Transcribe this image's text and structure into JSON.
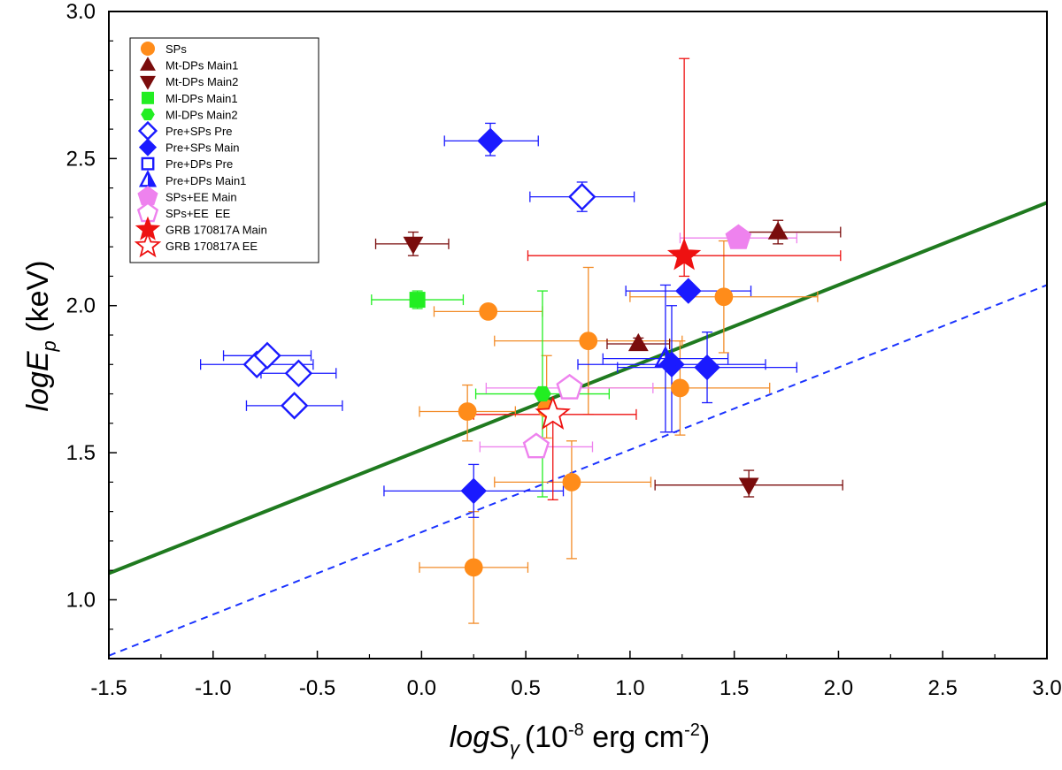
{
  "chart_data": {
    "type": "scatter",
    "title": "",
    "xlabel": {
      "main": "logS",
      "sub": "γ",
      "rest": "(10",
      "exp1": "-8",
      "unit": " erg cm",
      "exp2": "-2",
      "close": ")"
    },
    "ylabel": {
      "main": "logE",
      "sub": "p",
      "rest": " (keV)"
    },
    "xlim": [
      -1.5,
      3.0
    ],
    "ylim": [
      0.8,
      3.0
    ],
    "xticks": [
      -1.5,
      -1.0,
      -0.5,
      0.0,
      0.5,
      1.0,
      1.5,
      2.0,
      2.5,
      3.0
    ],
    "xtick_labels": [
      "-1.5",
      "-1.0",
      "-0.5",
      "0.0",
      "0.5",
      "1.0",
      "1.5",
      "2.0",
      "2.5",
      "3.0"
    ],
    "yticks": [
      1.0,
      1.5,
      2.0,
      2.5,
      3.0
    ],
    "ytick_labels": [
      "1.0",
      "1.5",
      "2.0",
      "2.5",
      "3.0"
    ],
    "legend_position": "top-left",
    "lines": [
      {
        "name": "fit",
        "style": "solid",
        "color": "#1f7a1f",
        "x": [
          -1.5,
          3.0
        ],
        "y": [
          1.09,
          2.35
        ]
      },
      {
        "name": "limit",
        "style": "dashed",
        "color": "#1a33ff",
        "x": [
          -1.5,
          3.0
        ],
        "y": [
          0.81,
          2.07
        ]
      }
    ],
    "series": [
      {
        "name": "SPs",
        "marker": "circle",
        "fill": "#ff8c1a",
        "stroke": "#ff8c1a",
        "err": "#f28c28",
        "points": [
          {
            "x": 0.32,
            "y": 1.98,
            "xerr": [
              0.26,
              0.26
            ],
            "yerr": [
              0,
              0
            ]
          },
          {
            "x": 0.8,
            "y": 1.88,
            "xerr": [
              0.45,
              0.45
            ],
            "yerr": [
              0.25,
              0.25
            ]
          },
          {
            "x": 1.45,
            "y": 2.03,
            "xerr": [
              0.45,
              0.45
            ],
            "yerr": [
              0.19,
              0.19
            ]
          },
          {
            "x": 0.22,
            "y": 1.64,
            "xerr": [
              0.23,
              0.23
            ],
            "yerr": [
              0.1,
              0.09
            ]
          },
          {
            "x": 1.24,
            "y": 1.72,
            "xerr": [
              0.44,
              0.43
            ],
            "yerr": [
              0.16,
              0.16
            ]
          },
          {
            "x": 0.72,
            "y": 1.4,
            "xerr": [
              0.37,
              0.38
            ],
            "yerr": [
              0.26,
              0.14
            ]
          },
          {
            "x": 0.25,
            "y": 1.11,
            "xerr": [
              0.26,
              0.26
            ],
            "yerr": [
              0.19,
              0.19
            ]
          },
          {
            "x": 0.6,
            "y": 1.65,
            "xerr": [
              0,
              0
            ],
            "yerr": [
              0.1,
              0.18
            ]
          }
        ]
      },
      {
        "name": "Mt-DPs Main1",
        "marker": "triangle-up",
        "fill": "#7a0c0c",
        "stroke": "#7a0c0c",
        "err": "#7a0c0c",
        "points": [
          {
            "x": 1.04,
            "y": 1.87,
            "xerr": [
              0.15,
              0.15
            ],
            "yerr": [
              0.02,
              0.02
            ]
          },
          {
            "x": 1.71,
            "y": 2.25,
            "xerr": [
              0.18,
              0.3
            ],
            "yerr": [
              0.04,
              0.04
            ]
          }
        ]
      },
      {
        "name": "Mt-DPs Main2",
        "marker": "triangle-down",
        "fill": "#7a0c0c",
        "stroke": "#7a0c0c",
        "err": "#7a0c0c",
        "points": [
          {
            "x": -0.04,
            "y": 2.21,
            "xerr": [
              0.18,
              0.17
            ],
            "yerr": [
              0.04,
              0.04
            ]
          },
          {
            "x": 1.57,
            "y": 1.39,
            "xerr": [
              0.45,
              0.45
            ],
            "yerr": [
              0.04,
              0.05
            ]
          }
        ]
      },
      {
        "name": "Ml-DPs Main1",
        "marker": "square",
        "fill": "#22ee22",
        "stroke": "#22ee22",
        "err": "#22ee22",
        "points": [
          {
            "x": -0.02,
            "y": 2.02,
            "xerr": [
              0.22,
              0.22
            ],
            "yerr": [
              0.03,
              0.03
            ]
          }
        ]
      },
      {
        "name": "Ml-DPs Main2",
        "marker": "hexagon",
        "fill": "#22ee22",
        "stroke": "#22ee22",
        "err": "#22ee22",
        "points": [
          {
            "x": 0.58,
            "y": 1.7,
            "xerr": [
              0.32,
              0.32
            ],
            "yerr": [
              0.35,
              0.35
            ]
          }
        ]
      },
      {
        "name": "Pre+SPs Pre",
        "marker": "diamond-open",
        "fill": "#ffffff",
        "stroke": "#1a1aff",
        "err": "#1a1aff",
        "points": [
          {
            "x": 0.77,
            "y": 2.37,
            "xerr": [
              0.25,
              0.25
            ],
            "yerr": [
              0.05,
              0.05
            ]
          },
          {
            "x": -0.79,
            "y": 1.8,
            "xerr": [
              0.27,
              0.27
            ],
            "yerr": [
              0,
              0
            ]
          },
          {
            "x": -0.74,
            "y": 1.83,
            "xerr": [
              0.21,
              0.21
            ],
            "yerr": [
              0,
              0
            ]
          },
          {
            "x": -0.59,
            "y": 1.77,
            "xerr": [
              0.18,
              0.18
            ],
            "yerr": [
              0,
              0
            ]
          },
          {
            "x": -0.61,
            "y": 1.66,
            "xerr": [
              0.23,
              0.23
            ],
            "yerr": [
              0,
              0
            ]
          }
        ]
      },
      {
        "name": "Pre+SPs Main",
        "marker": "diamond",
        "fill": "#1a1aff",
        "stroke": "#1a1aff",
        "err": "#1a1aff",
        "points": [
          {
            "x": 0.33,
            "y": 2.56,
            "xerr": [
              0.22,
              0.23
            ],
            "yerr": [
              0.05,
              0.06
            ]
          },
          {
            "x": 1.28,
            "y": 2.05,
            "xerr": [
              0.3,
              0.3
            ],
            "yerr": [
              0,
              0
            ]
          },
          {
            "x": 1.2,
            "y": 1.8,
            "xerr": [
              0.45,
              0.45
            ],
            "yerr": [
              0.23,
              0.2
            ]
          },
          {
            "x": 1.37,
            "y": 1.79,
            "xerr": [
              0.43,
              0.43
            ],
            "yerr": [
              0.12,
              0.12
            ]
          },
          {
            "x": 0.25,
            "y": 1.37,
            "xerr": [
              0.43,
              0.43
            ],
            "yerr": [
              0.09,
              0.09
            ]
          }
        ]
      },
      {
        "name": "Pre+DPs Pre",
        "marker": "square-open",
        "fill": "#ffffff",
        "stroke": "#1a1aff",
        "err": "#1a1aff",
        "points": []
      },
      {
        "name": "Pre+DPs Main1",
        "marker": "triangle-half",
        "fill": "#1a1aff",
        "stroke": "#1a1aff",
        "err": "#1a1aff",
        "points": [
          {
            "x": 1.17,
            "y": 1.82,
            "xerr": [
              0.3,
              0.3
            ],
            "yerr": [
              0.25,
              0.25
            ]
          }
        ]
      },
      {
        "name": "SPs+EE Main",
        "marker": "pentagon",
        "fill": "#ee82ee",
        "stroke": "#ee82ee",
        "err": "#ee82ee",
        "points": [
          {
            "x": 1.52,
            "y": 2.23,
            "xerr": [
              0.28,
              0.28
            ],
            "yerr": [
              0,
              0
            ]
          }
        ]
      },
      {
        "name": "SPs+EE  EE",
        "marker": "pentagon-open",
        "fill": "#ffffff",
        "stroke": "#ee82ee",
        "err": "#ee82ee",
        "points": [
          {
            "x": 0.71,
            "y": 1.72,
            "xerr": [
              0.4,
              0.4
            ],
            "yerr": [
              0,
              0
            ]
          },
          {
            "x": 0.55,
            "y": 1.52,
            "xerr": [
              0.27,
              0.27
            ],
            "yerr": [
              0,
              0
            ]
          }
        ]
      },
      {
        "name": "GRB 170817A Main",
        "marker": "star",
        "fill": "#ee1111",
        "stroke": "#ee1111",
        "err": "#ee1111",
        "points": [
          {
            "x": 1.26,
            "y": 2.17,
            "xerr": [
              0.75,
              0.75
            ],
            "yerr": [
              0.07,
              0.67
            ]
          }
        ]
      },
      {
        "name": "GRB 170817A EE",
        "marker": "star-open",
        "fill": "#ffffff",
        "stroke": "#ee1111",
        "err": "#ee1111",
        "points": [
          {
            "x": 0.63,
            "y": 1.63,
            "xerr": [
              0.38,
              0.4
            ],
            "yerr": [
              0.29,
              0.02
            ]
          }
        ]
      }
    ]
  }
}
